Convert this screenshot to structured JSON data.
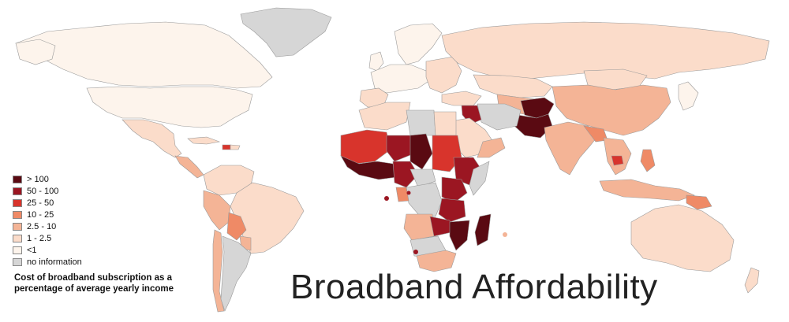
{
  "title": "Broadband Affordability",
  "caption": "Cost of broadband subscription as a percentage of average yearly income",
  "colors": {
    "ocean": "#ffffff",
    "border": "#9a9a9a",
    "c_gt100": "#5a0a12",
    "c_50_100": "#9b1622",
    "c_25_50": "#d8342c",
    "c_10_25": "#ef8a66",
    "c_2_10": "#f4b496",
    "c_1_2": "#fbdcca",
    "c_lt1": "#fdf4ec",
    "c_none": "#d6d6d6"
  },
  "legend": [
    {
      "label": "> 100",
      "color": "#5a0a12"
    },
    {
      "label": "50 - 100",
      "color": "#9b1622"
    },
    {
      "label": "25 - 50",
      "color": "#d8342c"
    },
    {
      "label": "10 - 25",
      "color": "#ef8a66"
    },
    {
      "label": "2.5 - 10",
      "color": "#f4b496"
    },
    {
      "label": "1 - 2.5",
      "color": "#fbdcca"
    },
    {
      "label": "<1",
      "color": "#fdf4ec"
    },
    {
      "label": "no information",
      "color": "#d6d6d6"
    }
  ]
}
